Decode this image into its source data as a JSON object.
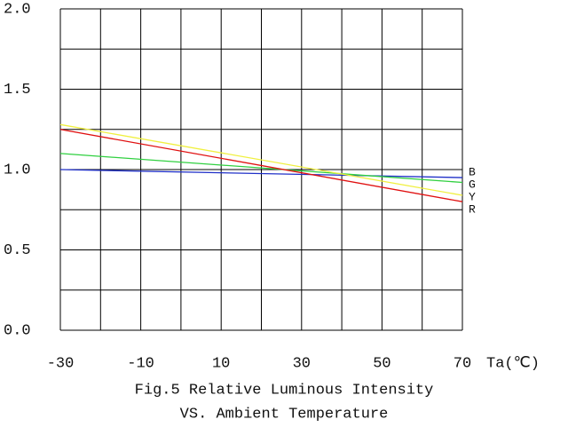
{
  "chart_data": {
    "type": "line",
    "title": [
      "Fig.5 Relative Luminous Intensity",
      "VS. Ambient Temperature"
    ],
    "x_label": "Ta(℃)",
    "x": [
      -30,
      70
    ],
    "series": [
      {
        "name": "B",
        "color": "#2030c8",
        "values": [
          1.0,
          0.95
        ]
      },
      {
        "name": "G",
        "color": "#30d040",
        "values": [
          1.1,
          0.92
        ]
      },
      {
        "name": "Y",
        "color": "#f0f040",
        "values": [
          1.28,
          0.84
        ]
      },
      {
        "name": "R",
        "color": "#e01010",
        "values": [
          1.25,
          0.8
        ]
      }
    ],
    "xlim": [
      -30,
      70
    ],
    "ylim": [
      0,
      2
    ],
    "xticks": [
      -30,
      -10,
      10,
      30,
      50,
      70
    ],
    "yticks": [
      {
        "value": 0,
        "label": "0.0"
      },
      0.5,
      {
        "value": 1,
        "label": "1.0"
      },
      1.5,
      {
        "value": 2,
        "label": "2.0"
      }
    ],
    "xgrid": [
      -30,
      -20,
      -10,
      0,
      10,
      20,
      30,
      40,
      50,
      60,
      70
    ],
    "ygrid": [
      0,
      0.25,
      0.5,
      0.75,
      1,
      1.25,
      1.5,
      1.75,
      2
    ],
    "legend": "right"
  }
}
